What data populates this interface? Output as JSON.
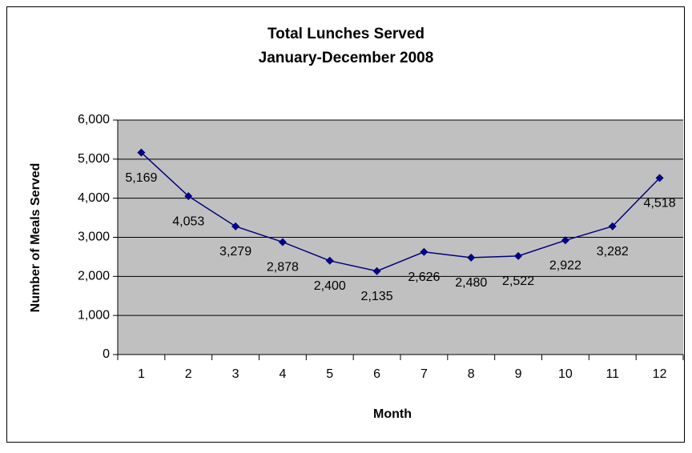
{
  "chart_data": {
    "type": "line",
    "title": "Total Lunches Served",
    "subtitle": "January-December 2008",
    "x_label": "Month",
    "y_label": "Number of Meals Served",
    "categories": [
      "1",
      "2",
      "3",
      "4",
      "5",
      "6",
      "7",
      "8",
      "9",
      "10",
      "11",
      "12"
    ],
    "values": [
      5169,
      4053,
      3279,
      2878,
      2400,
      2135,
      2626,
      2480,
      2522,
      2922,
      3282,
      4518
    ],
    "value_labels": [
      "5,169",
      "4,053",
      "3,279",
      "2,878",
      "2,400",
      "2,135",
      "2,626",
      "2,480",
      "2,522",
      "2,922",
      "3,282",
      "4,518"
    ],
    "color": "#000080",
    "ylim": [
      0,
      6000
    ],
    "yticks": [
      0,
      {
        "value": 1000,
        "label": "1,000"
      },
      {
        "value": 2000,
        "label": "2,000"
      },
      {
        "value": 3000,
        "label": "3,000"
      },
      {
        "value": 4000,
        "label": "4,000"
      },
      {
        "value": 5000,
        "label": "5,000"
      },
      {
        "value": 6000,
        "label": "6,000"
      }
    ],
    "grid": true
  }
}
